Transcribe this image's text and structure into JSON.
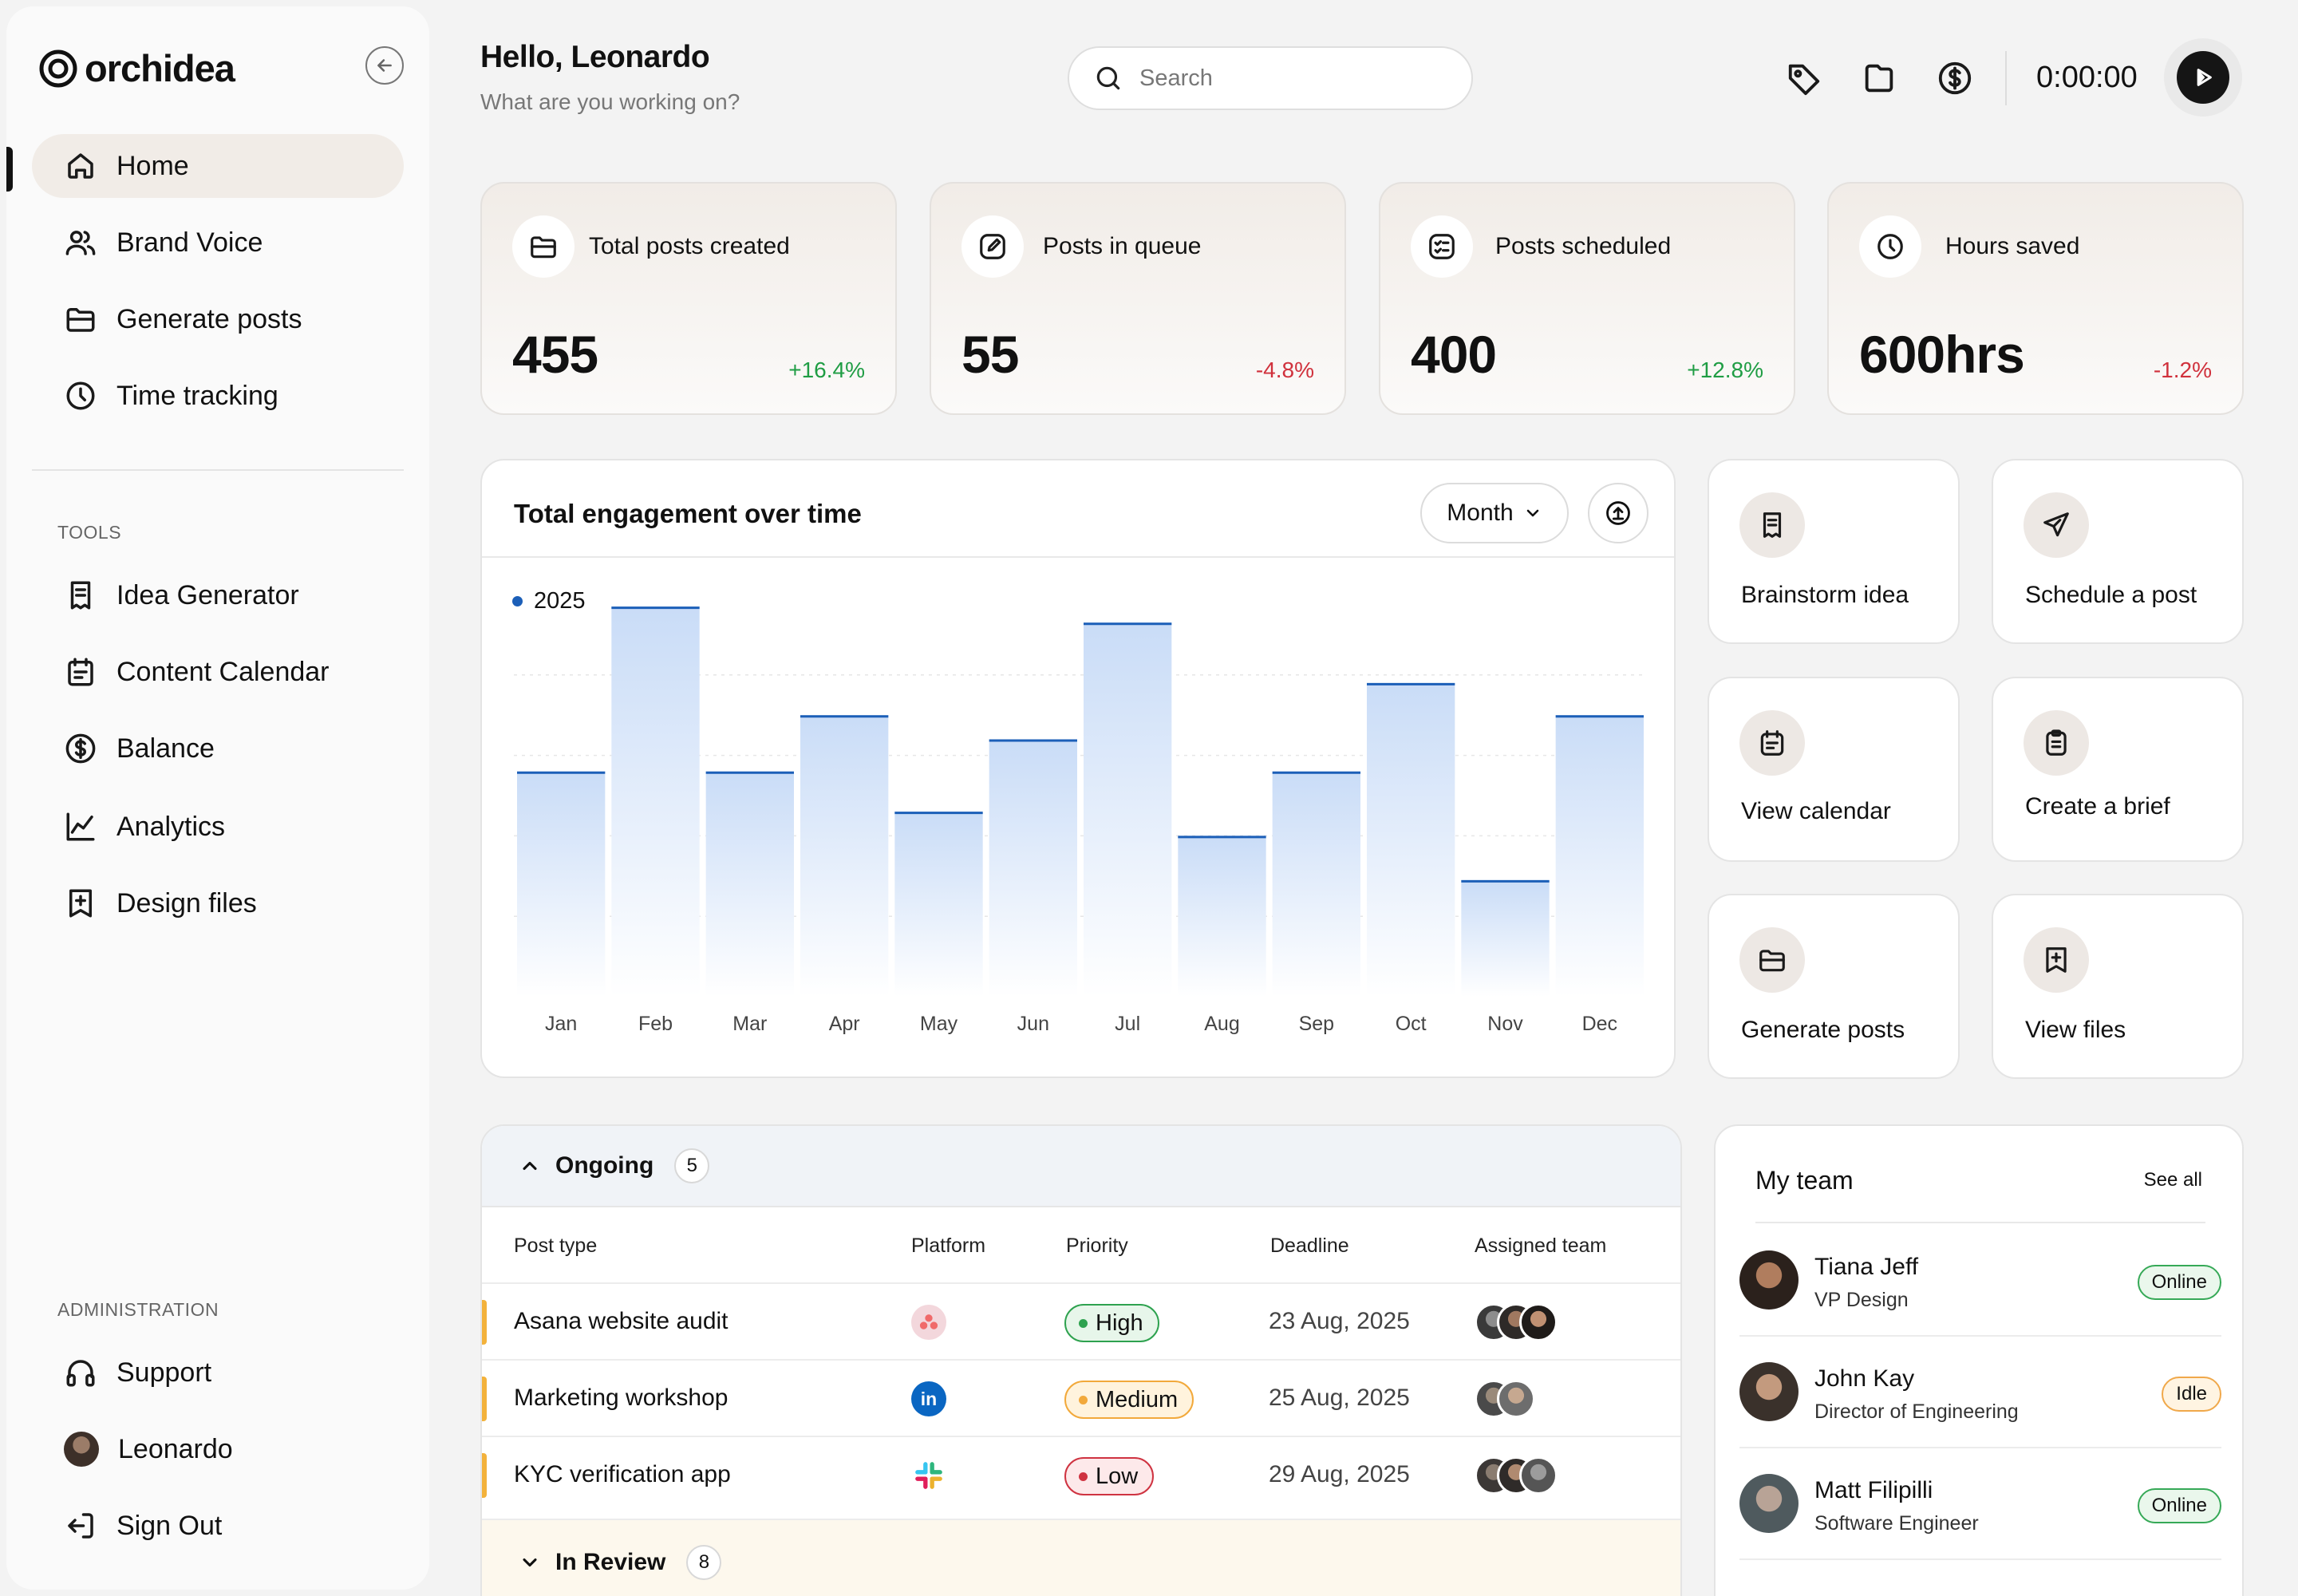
{
  "brand": {
    "name": "orchidea"
  },
  "sidebar": {
    "main": [
      {
        "label": "Home",
        "icon": "home-icon",
        "active": true
      },
      {
        "label": "Brand Voice",
        "icon": "users-icon"
      },
      {
        "label": "Generate posts",
        "icon": "folder-icon"
      },
      {
        "label": "Time tracking",
        "icon": "clock-icon"
      }
    ],
    "tools_label": "TOOLS",
    "tools": [
      {
        "label": "Idea Generator",
        "icon": "receipt-icon"
      },
      {
        "label": "Content Calendar",
        "icon": "calendar-icon"
      },
      {
        "label": "Balance",
        "icon": "dollar-icon"
      },
      {
        "label": "Analytics",
        "icon": "chart-icon"
      },
      {
        "label": "Design files",
        "icon": "file-plus-icon"
      }
    ],
    "admin_label": "ADMINISTRATION",
    "admin": [
      {
        "label": "Support",
        "icon": "headphones-icon"
      },
      {
        "label": "Leonardo",
        "icon": "avatar"
      },
      {
        "label": "Sign Out",
        "icon": "sign-out-icon"
      }
    ]
  },
  "header": {
    "greeting": "Hello, Leonardo",
    "subtitle": "What are you working on?",
    "search_placeholder": "Search",
    "timer": "0:00:00"
  },
  "stats": [
    {
      "label": "Total posts created",
      "value": "455",
      "change": "+16.4%",
      "trend": "up"
    },
    {
      "label": "Posts in queue",
      "value": "55",
      "change": "-4.8%",
      "trend": "down"
    },
    {
      "label": "Posts scheduled",
      "value": "400",
      "change": "+12.8%",
      "trend": "up"
    },
    {
      "label": "Hours saved",
      "value": "600hrs",
      "change": "-1.2%",
      "trend": "down"
    }
  ],
  "engagement": {
    "title": "Total engagement over time",
    "period": "Month"
  },
  "chart_data": {
    "type": "bar",
    "title": "Total engagement over time",
    "categories": [
      "Jan",
      "Feb",
      "Mar",
      "Apr",
      "May",
      "Jun",
      "Jul",
      "Aug",
      "Sep",
      "Oct",
      "Nov",
      "Dec"
    ],
    "series": [
      {
        "name": "2025",
        "values": [
          56,
          97,
          56,
          70,
          46,
          64,
          93,
          40,
          56,
          78,
          29,
          70
        ],
        "color": "#1c5fb8"
      }
    ],
    "ylim": [
      0,
      100
    ],
    "grid": true,
    "legend": "top-left"
  },
  "actions": [
    {
      "label": "Brainstorm idea",
      "icon": "note-icon"
    },
    {
      "label": "Schedule a post",
      "icon": "send-icon"
    },
    {
      "label": "View calendar",
      "icon": "calendar-icon"
    },
    {
      "label": "Create a brief",
      "icon": "clipboard-icon"
    },
    {
      "label": "Generate posts",
      "icon": "folder-icon"
    },
    {
      "label": "View files",
      "icon": "file-plus-icon"
    }
  ],
  "tasks": {
    "group": "Ongoing",
    "group_count": "5",
    "columns": [
      "Post type",
      "Platform",
      "Priority",
      "Deadline",
      "Assigned team"
    ],
    "rows": [
      {
        "name": "Asana website audit",
        "platform": "asana-icon",
        "priority": "High",
        "deadline": "23 Aug, 2025",
        "team_size": 3
      },
      {
        "name": "Marketing workshop",
        "platform": "linkedin-icon",
        "priority": "Medium",
        "deadline": "25 Aug, 2025",
        "team_size": 2
      },
      {
        "name": "KYC verification app",
        "platform": "slack-icon",
        "priority": "Low",
        "deadline": "29 Aug, 2025",
        "team_size": 3
      }
    ],
    "review_group": "In Review",
    "review_count": "8"
  },
  "team": {
    "title": "My team",
    "see_all": "See all",
    "members": [
      {
        "name": "Tiana Jeff",
        "role": "VP Design",
        "status": "Online"
      },
      {
        "name": "John Kay",
        "role": "Director of Engineering",
        "status": "Idle"
      },
      {
        "name": "Matt Filipilli",
        "role": "Software Engineer",
        "status": "Online"
      }
    ]
  },
  "colors": {
    "accent": "#1c5fb8",
    "positive": "#1f9d44",
    "negative": "#d0313c",
    "active_nav": "#f1ece7"
  }
}
